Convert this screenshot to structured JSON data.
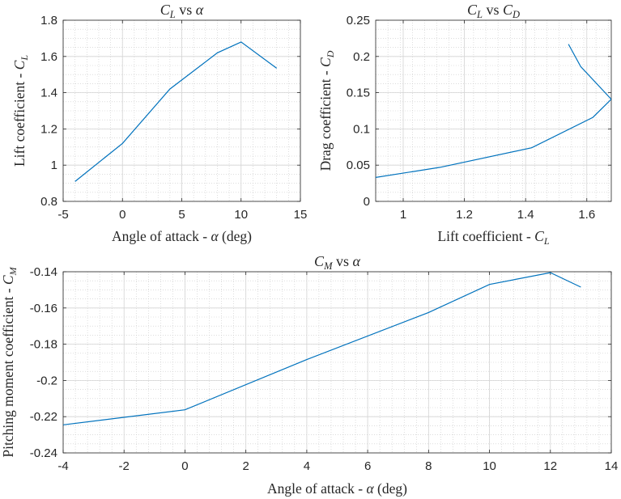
{
  "chart_data": [
    {
      "type": "line",
      "title": "CL vs α",
      "title_parts": {
        "a": "C",
        "a_sub": "L",
        "mid": " vs ",
        "b": "α"
      },
      "xlabel": "Angle of attack - α (deg)",
      "ylabel": "Lift coefficient - CL",
      "xlabel_parts": {
        "pre": "Angle of attack - ",
        "sym": "α",
        "post": " (deg)"
      },
      "ylabel_parts": {
        "pre": "Lift coefficient - ",
        "sym": "C",
        "sub": "L"
      },
      "xlim": [
        -5,
        15
      ],
      "ylim": [
        0.8,
        1.8
      ],
      "xticks": [
        -5,
        0,
        5,
        10,
        15
      ],
      "yticks": [
        0.8,
        1,
        1.2,
        1.4,
        1.6,
        1.8
      ],
      "xtick_labels": [
        "-5",
        "0",
        "5",
        "10",
        "15"
      ],
      "ytick_labels": [
        "0.8",
        "1",
        "1.2",
        "1.4",
        "1.6",
        "1.8"
      ],
      "grid": true,
      "minor_grid": true,
      "series": [
        {
          "color": "#0072BD",
          "x": [
            -4,
            0,
            4,
            8,
            10,
            13
          ],
          "y": [
            0.91,
            1.12,
            1.42,
            1.62,
            1.68,
            1.535
          ]
        }
      ]
    },
    {
      "type": "line",
      "title": "CL vs CD",
      "title_parts": {
        "a": "C",
        "a_sub": "L",
        "mid": " vs ",
        "b": "C",
        "b_sub": "D"
      },
      "xlabel": "Lift coefficient - CL",
      "ylabel": "Drag coefficient - CD",
      "xlabel_parts": {
        "pre": "Lift coefficient - ",
        "sym": "C",
        "sub": "L"
      },
      "ylabel_parts": {
        "pre": "Drag coefficient - ",
        "sym": "C",
        "sub": "D"
      },
      "xlim": [
        0.91,
        1.68
      ],
      "ylim": [
        0,
        0.25
      ],
      "xticks": [
        1,
        1.2,
        1.4,
        1.6
      ],
      "yticks": [
        0,
        0.05,
        0.1,
        0.15,
        0.2,
        0.25
      ],
      "xtick_labels": [
        "1",
        "1.2",
        "1.4",
        "1.6"
      ],
      "ytick_labels": [
        "0",
        "0.05",
        "0.1",
        "0.15",
        "0.2",
        "0.25"
      ],
      "grid": true,
      "minor_grid": true,
      "series": [
        {
          "color": "#0072BD",
          "x": [
            0.91,
            1.12,
            1.42,
            1.62,
            1.68,
            1.58,
            1.54
          ],
          "y": [
            0.033,
            0.047,
            0.074,
            0.116,
            0.141,
            0.186,
            0.217
          ]
        }
      ]
    },
    {
      "type": "line",
      "title": "CM vs α",
      "title_parts": {
        "a": "C",
        "a_sub": "M",
        "mid": " vs ",
        "b": "α"
      },
      "xlabel": "Angle of attack - α (deg)",
      "ylabel": "Pitching moment coefficient - CM",
      "xlabel_parts": {
        "pre": "Angle of attack - ",
        "sym": "α",
        "post": " (deg)"
      },
      "ylabel_parts": {
        "pre": "Pitching moment coefficient - ",
        "sym": "C",
        "sub": "M"
      },
      "xlim": [
        -4,
        14
      ],
      "ylim": [
        -0.24,
        -0.14
      ],
      "xticks": [
        -4,
        -2,
        0,
        2,
        4,
        6,
        8,
        10,
        12,
        14
      ],
      "yticks": [
        -0.24,
        -0.22,
        -0.2,
        -0.18,
        -0.16,
        -0.14
      ],
      "xtick_labels": [
        "-4",
        "-2",
        "0",
        "2",
        "4",
        "6",
        "8",
        "10",
        "12",
        "14"
      ],
      "ytick_labels": [
        "-0.24",
        "-0.22",
        "-0.2",
        "-0.18",
        "-0.16",
        "-0.14"
      ],
      "grid": true,
      "minor_grid": true,
      "series": [
        {
          "color": "#0072BD",
          "x": [
            -4,
            0,
            4,
            8,
            10,
            12,
            13
          ],
          "y": [
            -0.2245,
            -0.2162,
            -0.1885,
            -0.1625,
            -0.147,
            -0.1405,
            -0.1485
          ]
        }
      ]
    }
  ]
}
